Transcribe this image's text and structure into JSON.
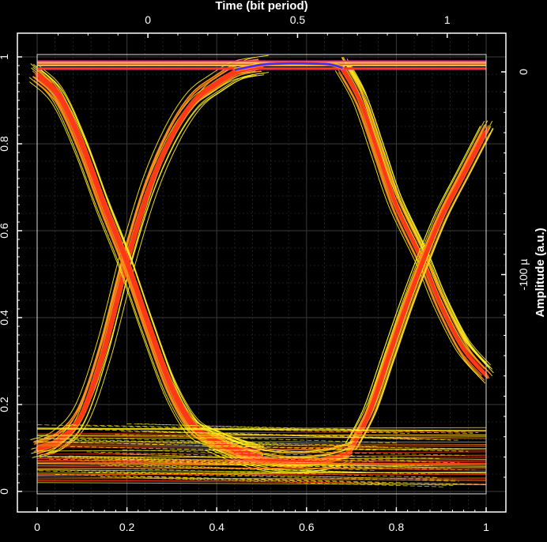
{
  "chart_data": {
    "type": "line",
    "subtype": "eye-diagram",
    "title": "",
    "xlabel_top": "Time (bit period)",
    "ylabel_right": "Amplitude (a.u.)",
    "x": {
      "range": [
        0,
        1
      ],
      "ticks": [
        0,
        0.2,
        0.4,
        0.6,
        0.8,
        1
      ],
      "tick_labels": [
        "0",
        "0.2",
        "0.4",
        "0.6",
        "0.8",
        "1"
      ]
    },
    "y": {
      "range": [
        0,
        1
      ],
      "ticks": [
        0,
        0.2,
        0.4,
        0.6,
        0.8,
        1
      ],
      "tick_labels": [
        "0",
        "0.2",
        "0.4",
        "0.6",
        "0.8",
        "1"
      ]
    },
    "x_top": {
      "range": [
        -0.37,
        1.13
      ],
      "ticks": [
        0,
        0.5,
        1
      ],
      "tick_labels": [
        "0",
        "0.5",
        "1"
      ]
    },
    "y_right": {
      "range": [
        -0.000207,
        7.4e-06
      ],
      "ticks": [
        0,
        -0.0001
      ],
      "tick_labels": [
        "0",
        "-100 µ"
      ]
    },
    "grid": true,
    "background": "#000000",
    "levels": {
      "high": 0.98,
      "low": 0.085
    },
    "crossings": [
      {
        "x": 0.2,
        "y": 0.53
      },
      {
        "x": 0.86,
        "y": 0.53
      }
    ],
    "traces": {
      "rising": [
        [
          0.0,
          0.1
        ],
        [
          0.05,
          0.12
        ],
        [
          0.1,
          0.18
        ],
        [
          0.15,
          0.33
        ],
        [
          0.2,
          0.53
        ],
        [
          0.25,
          0.7
        ],
        [
          0.3,
          0.82
        ],
        [
          0.35,
          0.9
        ],
        [
          0.4,
          0.94
        ],
        [
          0.45,
          0.97
        ],
        [
          0.5,
          0.98
        ]
      ],
      "falling": [
        [
          0.0,
          0.96
        ],
        [
          0.05,
          0.91
        ],
        [
          0.1,
          0.8
        ],
        [
          0.15,
          0.66
        ],
        [
          0.2,
          0.53
        ],
        [
          0.25,
          0.38
        ],
        [
          0.3,
          0.24
        ],
        [
          0.35,
          0.15
        ],
        [
          0.4,
          0.12
        ],
        [
          0.45,
          0.1
        ],
        [
          0.5,
          0.085
        ]
      ],
      "high_arc": [
        [
          0.44,
          0.97
        ],
        [
          0.5,
          0.982
        ],
        [
          0.55,
          0.985
        ],
        [
          0.6,
          0.985
        ],
        [
          0.65,
          0.983
        ],
        [
          0.68,
          0.975
        ]
      ],
      "low_arc": [
        [
          0.38,
          0.12
        ],
        [
          0.45,
          0.09
        ],
        [
          0.5,
          0.075
        ],
        [
          0.55,
          0.068
        ],
        [
          0.6,
          0.068
        ],
        [
          0.65,
          0.075
        ],
        [
          0.7,
          0.09
        ]
      ],
      "falling_2": [
        [
          0.68,
          0.975
        ],
        [
          0.72,
          0.9
        ],
        [
          0.76,
          0.78
        ],
        [
          0.8,
          0.66
        ],
        [
          0.86,
          0.53
        ],
        [
          0.9,
          0.43
        ],
        [
          0.95,
          0.33
        ],
        [
          1.0,
          0.27
        ]
      ],
      "rising_2": [
        [
          0.7,
          0.1
        ],
        [
          0.74,
          0.18
        ],
        [
          0.78,
          0.3
        ],
        [
          0.82,
          0.42
        ],
        [
          0.86,
          0.53
        ],
        [
          0.9,
          0.63
        ],
        [
          0.95,
          0.73
        ],
        [
          1.0,
          0.83
        ]
      ]
    },
    "colors": {
      "dense": "#ff3a18",
      "mid": "#ff8a1c",
      "sparse": "#ffee20",
      "peak": "#3a30ff",
      "magenta": "#ff2a9a",
      "axis": "#ffffff",
      "grid": "#3a3a3a"
    }
  }
}
